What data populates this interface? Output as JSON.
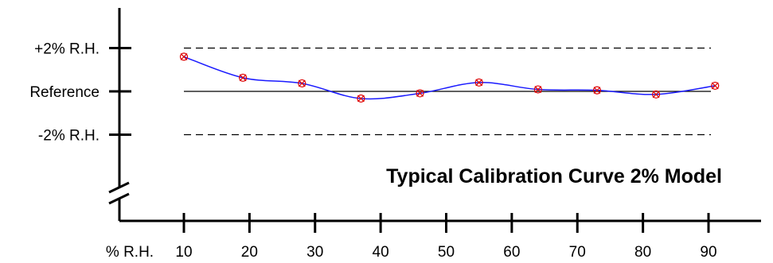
{
  "chart_data": {
    "type": "line",
    "title": "Typical Calibration Curve 2% Model",
    "xlabel": "% R.H.",
    "ylabel": "",
    "x_ticks": [
      10,
      20,
      30,
      40,
      50,
      60,
      70,
      80,
      90
    ],
    "y_ticks": [
      "+2% R.H.",
      "Reference",
      "-2% R.H."
    ],
    "xlim": [
      10,
      90
    ],
    "ylim": [
      -2,
      2
    ],
    "grid": false,
    "reference_lines": [
      {
        "label": "+2% R.H.",
        "y": 2,
        "style": "dashed"
      },
      {
        "label": "Reference",
        "y": 0,
        "style": "solid"
      },
      {
        "label": "-2% R.H.",
        "y": -2,
        "style": "dashed"
      }
    ],
    "series": [
      {
        "x": [
          10,
          19,
          28,
          37,
          46,
          55,
          64,
          73,
          82,
          91
        ],
        "y": [
          1.6,
          0.63,
          0.37,
          -0.33,
          -0.09,
          0.41,
          0.09,
          0.05,
          -0.14,
          0.26
        ],
        "marker_color": "#dd0000",
        "line_color": "#1a1aff"
      }
    ]
  }
}
